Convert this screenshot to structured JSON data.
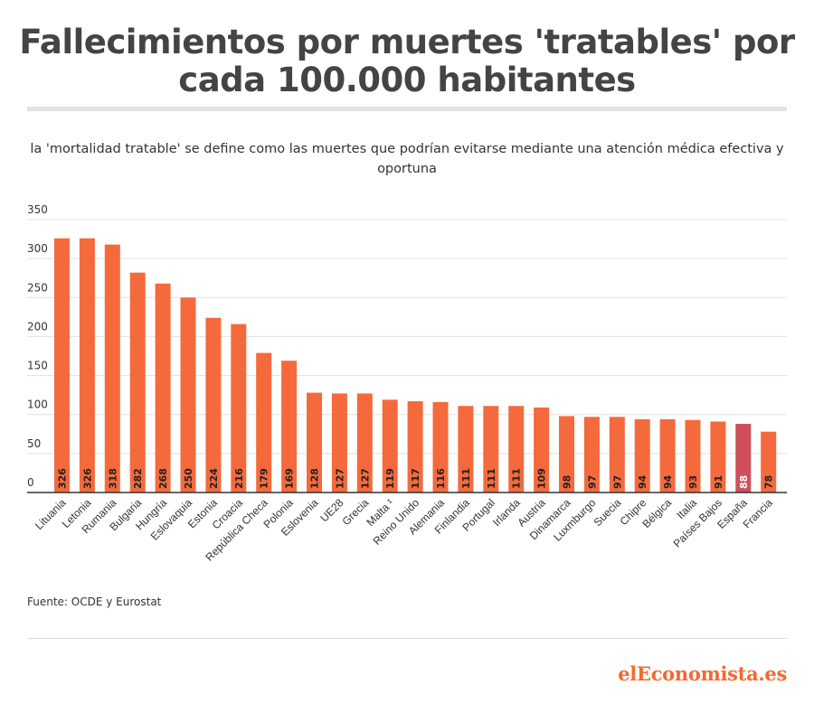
{
  "title": "Fallecimientos por muertes 'tratables' por cada 100.000 habitantes",
  "subtitle": "la 'mortalidad tratable' se define como las muertes que podrían evitarse mediante una atención médica efectiva y oportuna",
  "source": "Fuente: OCDE y Eurostat",
  "logo": "elEconomista.es",
  "colors": {
    "bar": "#f46a3c",
    "highlight": "#cf4f5a",
    "grid": "#e0e0e0",
    "axis": "#333333",
    "text": "#333333"
  },
  "chart_data": {
    "type": "bar",
    "title": "",
    "xlabel": "",
    "ylabel": "",
    "ylim": [
      0,
      350
    ],
    "yticks": [
      0,
      50,
      100,
      150,
      200,
      250,
      300,
      350
    ],
    "grid": true,
    "legend": "none",
    "highlight_category": "España",
    "categories": [
      "Lituania",
      "Letonia",
      "Rumania",
      "Bulgaria",
      "Hungría",
      "Eslovaquia",
      "Estonia",
      "Croacia",
      "República Checa",
      "Polonia",
      "Eslovenia",
      "UE28",
      "Grecia",
      "Malta ¹",
      "Reino Unido",
      "Alemania",
      "Finlandia",
      "Portugal",
      "Irlanda",
      "Austria",
      "Dinamarca",
      "Luxmburgo",
      "Suecia",
      "Chipre",
      "Bélgica",
      "Italia",
      "Países Bajos",
      "España",
      "Francia"
    ],
    "values": [
      326,
      326,
      318,
      282,
      268,
      250,
      224,
      216,
      179,
      169,
      128,
      127,
      127,
      119,
      117,
      116,
      111,
      111,
      111,
      109,
      98,
      97,
      97,
      94,
      94,
      93,
      91,
      88,
      78
    ]
  }
}
